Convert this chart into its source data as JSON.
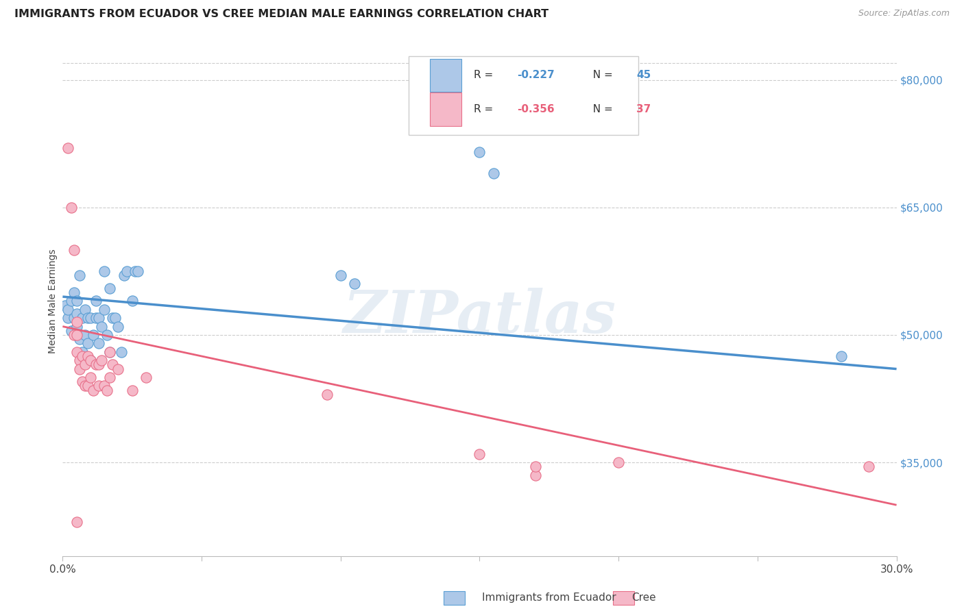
{
  "title": "IMMIGRANTS FROM ECUADOR VS CREE MEDIAN MALE EARNINGS CORRELATION CHART",
  "source": "Source: ZipAtlas.com",
  "ylabel": "Median Male Earnings",
  "watermark": "ZIPatlas",
  "y_ticks": [
    35000,
    50000,
    65000,
    80000
  ],
  "y_tick_labels": [
    "$35,000",
    "$50,000",
    "$65,000",
    "$80,000"
  ],
  "x_min": 0.0,
  "x_max": 0.3,
  "y_min": 24000,
  "y_max": 84000,
  "legend_blue_r": "-0.227",
  "legend_blue_n": "45",
  "legend_pink_r": "-0.356",
  "legend_pink_n": "37",
  "blue_fill": "#adc8e8",
  "pink_fill": "#f5b8c8",
  "blue_edge": "#5a9fd4",
  "pink_edge": "#e8708a",
  "blue_line_color": "#4a8fcc",
  "pink_line_color": "#e8607a",
  "title_color": "#222222",
  "right_axis_color": "#4a8fcc",
  "grid_color": "#cccccc",
  "blue_scatter": [
    [
      0.001,
      53500
    ],
    [
      0.002,
      52000
    ],
    [
      0.002,
      53000
    ],
    [
      0.003,
      54000
    ],
    [
      0.003,
      50500
    ],
    [
      0.004,
      55000
    ],
    [
      0.004,
      52000
    ],
    [
      0.005,
      54000
    ],
    [
      0.005,
      51000
    ],
    [
      0.005,
      52500
    ],
    [
      0.006,
      57000
    ],
    [
      0.006,
      49500
    ],
    [
      0.007,
      52000
    ],
    [
      0.007,
      48000
    ],
    [
      0.008,
      53000
    ],
    [
      0.008,
      50000
    ],
    [
      0.009,
      52000
    ],
    [
      0.009,
      49000
    ],
    [
      0.01,
      47000
    ],
    [
      0.01,
      52000
    ],
    [
      0.011,
      50000
    ],
    [
      0.012,
      52000
    ],
    [
      0.012,
      54000
    ],
    [
      0.013,
      52000
    ],
    [
      0.013,
      49000
    ],
    [
      0.014,
      51000
    ],
    [
      0.015,
      57500
    ],
    [
      0.015,
      53000
    ],
    [
      0.016,
      50000
    ],
    [
      0.017,
      55500
    ],
    [
      0.017,
      48000
    ],
    [
      0.018,
      52000
    ],
    [
      0.019,
      52000
    ],
    [
      0.02,
      51000
    ],
    [
      0.021,
      48000
    ],
    [
      0.022,
      57000
    ],
    [
      0.023,
      57500
    ],
    [
      0.025,
      54000
    ],
    [
      0.026,
      57500
    ],
    [
      0.027,
      57500
    ],
    [
      0.1,
      57000
    ],
    [
      0.105,
      56000
    ],
    [
      0.15,
      71500
    ],
    [
      0.155,
      69000
    ],
    [
      0.28,
      47500
    ]
  ],
  "pink_scatter": [
    [
      0.002,
      72000
    ],
    [
      0.003,
      65000
    ],
    [
      0.004,
      60000
    ],
    [
      0.004,
      50000
    ],
    [
      0.005,
      51500
    ],
    [
      0.005,
      50000
    ],
    [
      0.005,
      48000
    ],
    [
      0.006,
      47000
    ],
    [
      0.006,
      46000
    ],
    [
      0.007,
      47500
    ],
    [
      0.007,
      44500
    ],
    [
      0.008,
      44000
    ],
    [
      0.008,
      46500
    ],
    [
      0.009,
      44000
    ],
    [
      0.009,
      47500
    ],
    [
      0.01,
      47000
    ],
    [
      0.01,
      45000
    ],
    [
      0.011,
      43500
    ],
    [
      0.012,
      46500
    ],
    [
      0.013,
      46500
    ],
    [
      0.013,
      44000
    ],
    [
      0.014,
      47000
    ],
    [
      0.015,
      44000
    ],
    [
      0.016,
      43500
    ],
    [
      0.017,
      48000
    ],
    [
      0.017,
      45000
    ],
    [
      0.018,
      46500
    ],
    [
      0.02,
      46000
    ],
    [
      0.025,
      43500
    ],
    [
      0.03,
      45000
    ],
    [
      0.095,
      43000
    ],
    [
      0.15,
      36000
    ],
    [
      0.17,
      33500
    ],
    [
      0.2,
      35000
    ],
    [
      0.29,
      34500
    ],
    [
      0.005,
      28000
    ],
    [
      0.17,
      34500
    ]
  ],
  "blue_line_x": [
    0.0,
    0.3
  ],
  "blue_line_y": [
    54500,
    46000
  ],
  "pink_line_x": [
    0.0,
    0.3
  ],
  "pink_line_y": [
    51000,
    30000
  ]
}
